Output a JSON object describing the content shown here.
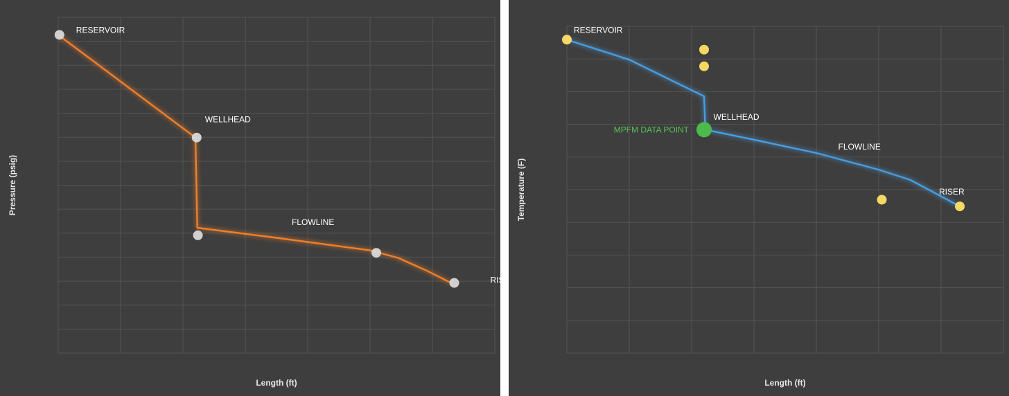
{
  "chart_data": [
    {
      "type": "line",
      "xlabel": "Length (ft)",
      "ylabel": "Pressure (psig)",
      "grid": true,
      "colors": {
        "line": "#f07f2a",
        "glow": "#ff9a4a",
        "marker": "#d8d8d8",
        "label": "#ffffff",
        "background": "#3e3e3e",
        "grid": "#545454"
      },
      "xlim": [
        0,
        7.0
      ],
      "ylim": [
        0,
        13.4
      ],
      "series_line": [
        {
          "x": 0.0,
          "y": 12.7
        },
        {
          "x": 2.2,
          "y": 8.6
        },
        {
          "x": 2.23,
          "y": 5.0
        },
        {
          "x": 3.5,
          "y": 4.6
        },
        {
          "x": 5.0,
          "y": 4.1
        },
        {
          "x": 5.45,
          "y": 3.8
        },
        {
          "x": 5.9,
          "y": 3.3
        },
        {
          "x": 6.3,
          "y": 2.8
        }
      ],
      "points": [
        {
          "x": 0.02,
          "y": 12.7,
          "label": "RESERVOIR"
        },
        {
          "x": 2.22,
          "y": 8.6,
          "label": "WELLHEAD"
        },
        {
          "x": 2.24,
          "y": 4.7,
          "label": ""
        },
        {
          "x": 5.1,
          "y": 4.0,
          "label": "FLOWLINE"
        },
        {
          "x": 6.35,
          "y": 2.8,
          "label": "RISER"
        }
      ]
    },
    {
      "type": "line",
      "xlabel": "Length (ft)",
      "ylabel": "Temperature (F)",
      "grid": true,
      "colors": {
        "line": "#4a9de0",
        "glow": "#6ab8ff",
        "marker": "#ffe066",
        "mpfm": "#4cbb4c",
        "mpfm_label": "#56c256",
        "label": "#ffffff",
        "background": "#3e3e3e",
        "grid": "#545454"
      },
      "xlim": [
        0,
        7.0
      ],
      "ylim": [
        0,
        9.8
      ],
      "series_line": [
        {
          "x": 0.0,
          "y": 9.4
        },
        {
          "x": 1.0,
          "y": 8.8
        },
        {
          "x": 2.2,
          "y": 7.7
        },
        {
          "x": 2.22,
          "y": 6.7
        },
        {
          "x": 3.0,
          "y": 6.4
        },
        {
          "x": 4.0,
          "y": 6.0
        },
        {
          "x": 5.0,
          "y": 5.5
        },
        {
          "x": 5.5,
          "y": 5.2
        },
        {
          "x": 6.1,
          "y": 4.6
        },
        {
          "x": 6.3,
          "y": 4.4
        }
      ],
      "points": [
        {
          "x": 0.0,
          "y": 9.4,
          "label": "RESERVOIR"
        },
        {
          "x": 2.2,
          "y": 9.1,
          "label": ""
        },
        {
          "x": 2.2,
          "y": 8.6,
          "label": ""
        },
        {
          "x": 5.05,
          "y": 4.6,
          "label": ""
        },
        {
          "x": 6.3,
          "y": 4.4,
          "label": "RISER"
        }
      ],
      "mpfm_point": {
        "x": 2.2,
        "y": 6.7,
        "label": "MPFM DATA POINT"
      },
      "annotations": [
        {
          "text": "WELLHEAD",
          "x": 2.35,
          "y": 7.0
        },
        {
          "text": "FLOWLINE",
          "x": 4.35,
          "y": 6.1
        }
      ]
    }
  ]
}
